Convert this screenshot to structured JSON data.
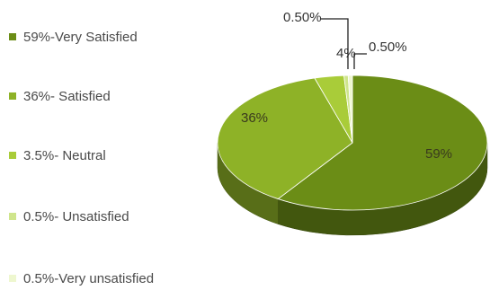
{
  "chart_data": {
    "type": "pie",
    "style": "3d",
    "categories": [
      "Very Satisfied",
      "Satisfied",
      "Neutral",
      "Unsatisfied",
      "Very unsatisfied"
    ],
    "values": [
      59,
      36,
      3.5,
      0.5,
      0.5
    ],
    "colors": [
      "#6b8d16",
      "#8eb227",
      "#a9cc39",
      "#cfe58c",
      "#eef7cf"
    ],
    "legend": {
      "placement": "left",
      "entries": [
        "59%-Very Satisfied",
        "36%- Satisfied",
        "3.5%- Neutral",
        "0.5%- Unsatisfied",
        "0.5%-Very unsatisfied"
      ]
    },
    "slice_labels": [
      "59%",
      "36%",
      "4%",
      "0.50%",
      "0.50%"
    ]
  }
}
